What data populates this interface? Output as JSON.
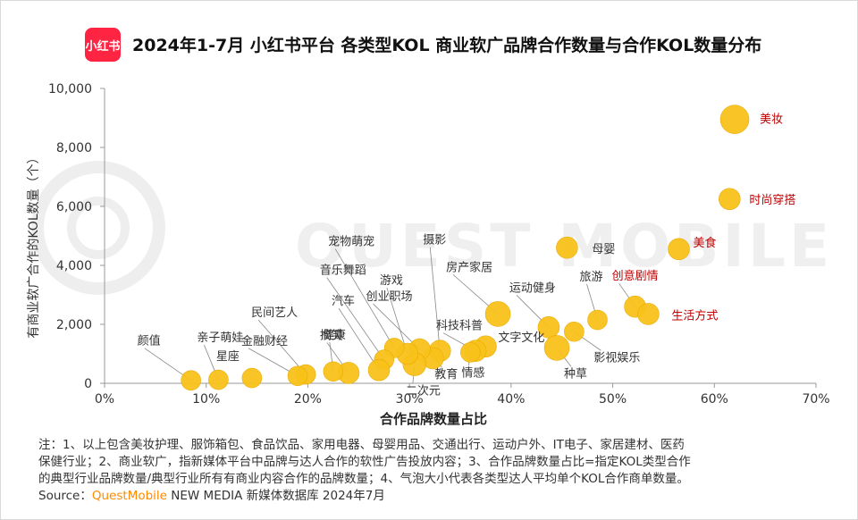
{
  "logo_text": "小红书",
  "title": "2024年1-7月 小红书平台 各类型KOL 商业软广品牌合作数量与合作KOL数量分布",
  "notes": {
    "line1": "注：1、以上包含美妆护理、服饰箱包、食品饮品、家用电器、母婴用品、交通出行、运动户外、IT电子、家居建材、医药",
    "line2": "保健行业；2、商业软广，指新媒体平台中品牌与达人合作的软性广告投放内容；3、合作品牌数量占比=指定KOL类型合作",
    "line3": "的典型行业品牌数量/典型行业所有有商业内容合作的品牌数量；4、气泡大小代表各类型达人平均单个KOL合作商单数量。",
    "source_prefix": "Source：",
    "source_brand": "QuestMobile",
    "source_suffix": " NEW MEDIA 新媒体数据库 2024年7月"
  },
  "watermark": "QUEST MOBILE",
  "colors": {
    "bubble": "#f9c21b",
    "highlight_label": "#c00000",
    "normal_label": "#333333",
    "axis": "#999999"
  },
  "chart_data": {
    "type": "scatter",
    "xlabel": "合作品牌数量占比",
    "ylabel": "有商业软广合作的KOL数量（个）",
    "xlim": [
      0,
      70
    ],
    "ylim": [
      0,
      10000
    ],
    "x_ticks": [
      "0%",
      "10%",
      "20%",
      "30%",
      "40%",
      "50%",
      "60%",
      "70%"
    ],
    "y_ticks": [
      "0",
      "2,000",
      "4,000",
      "6,000",
      "8,000",
      "10,000"
    ],
    "points": [
      {
        "label": "美妆",
        "x": 62.0,
        "y": 8950,
        "size": 16,
        "highlight": true
      },
      {
        "label": "时尚穿搭",
        "x": 61.5,
        "y": 6250,
        "size": 12,
        "highlight": true
      },
      {
        "label": "美食",
        "x": 56.5,
        "y": 4550,
        "size": 12,
        "highlight": true
      },
      {
        "label": "母婴",
        "x": 45.5,
        "y": 4600,
        "size": 12,
        "highlight": false
      },
      {
        "label": "创意剧情",
        "x": 52.2,
        "y": 2600,
        "size": 12,
        "highlight": true
      },
      {
        "label": "生活方式",
        "x": 53.5,
        "y": 2350,
        "size": 12,
        "highlight": true
      },
      {
        "label": "旅游",
        "x": 48.5,
        "y": 2150,
        "size": 11,
        "highlight": false
      },
      {
        "label": "影视娱乐",
        "x": 46.2,
        "y": 1750,
        "size": 11,
        "highlight": false
      },
      {
        "label": "运动健身",
        "x": 43.7,
        "y": 1900,
        "size": 12,
        "highlight": false
      },
      {
        "label": "种草",
        "x": 44.5,
        "y": 1200,
        "size": 14,
        "highlight": false
      },
      {
        "label": "房产家居",
        "x": 38.7,
        "y": 2350,
        "size": 14,
        "highlight": false
      },
      {
        "label": "文字文化",
        "x": 37.5,
        "y": 1250,
        "size": 12,
        "highlight": false
      },
      {
        "label": "科技科普",
        "x": 36.5,
        "y": 1100,
        "size": 12,
        "highlight": false
      },
      {
        "label": "情感",
        "x": 36.0,
        "y": 1050,
        "size": 11,
        "highlight": false
      },
      {
        "label": "摄影",
        "x": 33.0,
        "y": 1100,
        "size": 12,
        "highlight": false
      },
      {
        "label": "教育",
        "x": 32.3,
        "y": 850,
        "size": 12,
        "highlight": false
      },
      {
        "label": "创业职场",
        "x": 31.0,
        "y": 1150,
        "size": 12,
        "highlight": false
      },
      {
        "label": "二次元",
        "x": 30.5,
        "y": 650,
        "size": 13,
        "highlight": false
      },
      {
        "label": "游戏",
        "x": 29.8,
        "y": 1000,
        "size": 12,
        "highlight": false
      },
      {
        "label": "宠物萌宠",
        "x": 28.5,
        "y": 1200,
        "size": 11,
        "highlight": false
      },
      {
        "label": "音乐舞蹈",
        "x": 27.5,
        "y": 800,
        "size": 11,
        "highlight": false
      },
      {
        "label": "汽车",
        "x": 27.0,
        "y": 450,
        "size": 12,
        "highlight": false
      },
      {
        "label": "搞笑",
        "x": 24.0,
        "y": 350,
        "size": 12,
        "highlight": false
      },
      {
        "label": "健康",
        "x": 22.5,
        "y": 400,
        "size": 11,
        "highlight": false
      },
      {
        "label": "民间艺人",
        "x": 19.8,
        "y": 300,
        "size": 11,
        "highlight": false
      },
      {
        "label": "金融财经",
        "x": 19.0,
        "y": 250,
        "size": 11,
        "highlight": false
      },
      {
        "label": "星座",
        "x": 14.5,
        "y": 180,
        "size": 11,
        "highlight": false
      },
      {
        "label": "亲子萌娃",
        "x": 11.2,
        "y": 120,
        "size": 11,
        "highlight": false
      },
      {
        "label": "颜值",
        "x": 8.5,
        "y": 100,
        "size": 11,
        "highlight": false
      }
    ]
  }
}
